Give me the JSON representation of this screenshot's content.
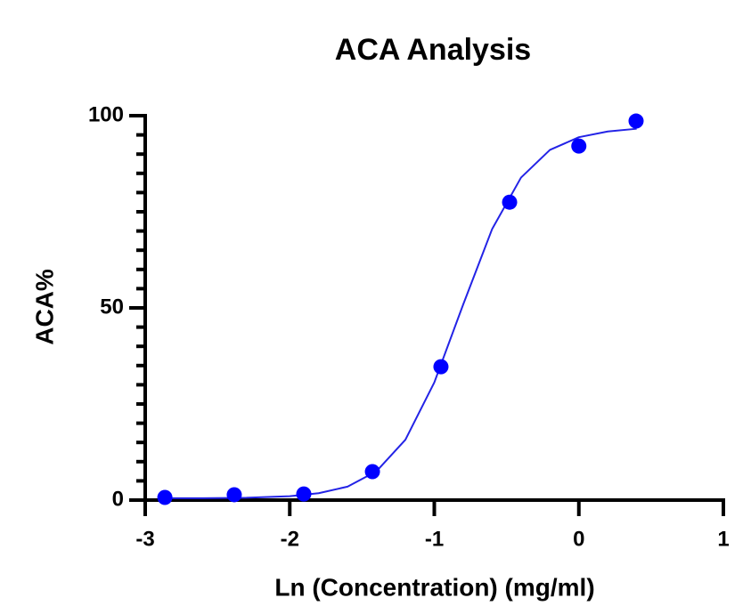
{
  "chart_data": {
    "type": "scatter",
    "title": "ACA Analysis",
    "x_label": "Ln (Concentration) (mg/ml)",
    "y_label": "ACA%",
    "xlim": [
      -3,
      1
    ],
    "xticks": [
      -3,
      -2,
      -1,
      0,
      1
    ],
    "ylim": [
      0,
      100
    ],
    "yticks": [
      0,
      50,
      100
    ],
    "yminorticks": [
      5,
      10,
      15,
      20,
      25,
      30,
      35,
      40,
      45,
      55,
      60,
      65,
      70,
      75,
      80,
      85,
      90,
      95
    ],
    "series": [
      {
        "type": "scatter",
        "color": "#0000ff",
        "x": [
          -2.864,
          -2.384,
          -1.903,
          -1.428,
          -0.954,
          -0.479,
          0,
          0.396
        ],
        "values": [
          0.7,
          1.4,
          1.6,
          7.4,
          34.7,
          77.5,
          92.1,
          98.6
        ]
      },
      {
        "type": "line",
        "color": "#2323e6",
        "x": [
          -2.9,
          -2.6,
          -2.3,
          -2.0,
          -1.8,
          -1.6,
          -1.4,
          -1.2,
          -1.0,
          -0.8,
          -0.6,
          -0.4,
          -0.2,
          0,
          0.2,
          0.4
        ],
        "values": [
          0.5,
          0.5,
          0.6,
          1.0,
          1.8,
          3.5,
          7.5,
          15.7,
          30.6,
          50.9,
          70.5,
          83.9,
          91.1,
          94.4,
          95.9,
          96.6
        ]
      }
    ]
  }
}
